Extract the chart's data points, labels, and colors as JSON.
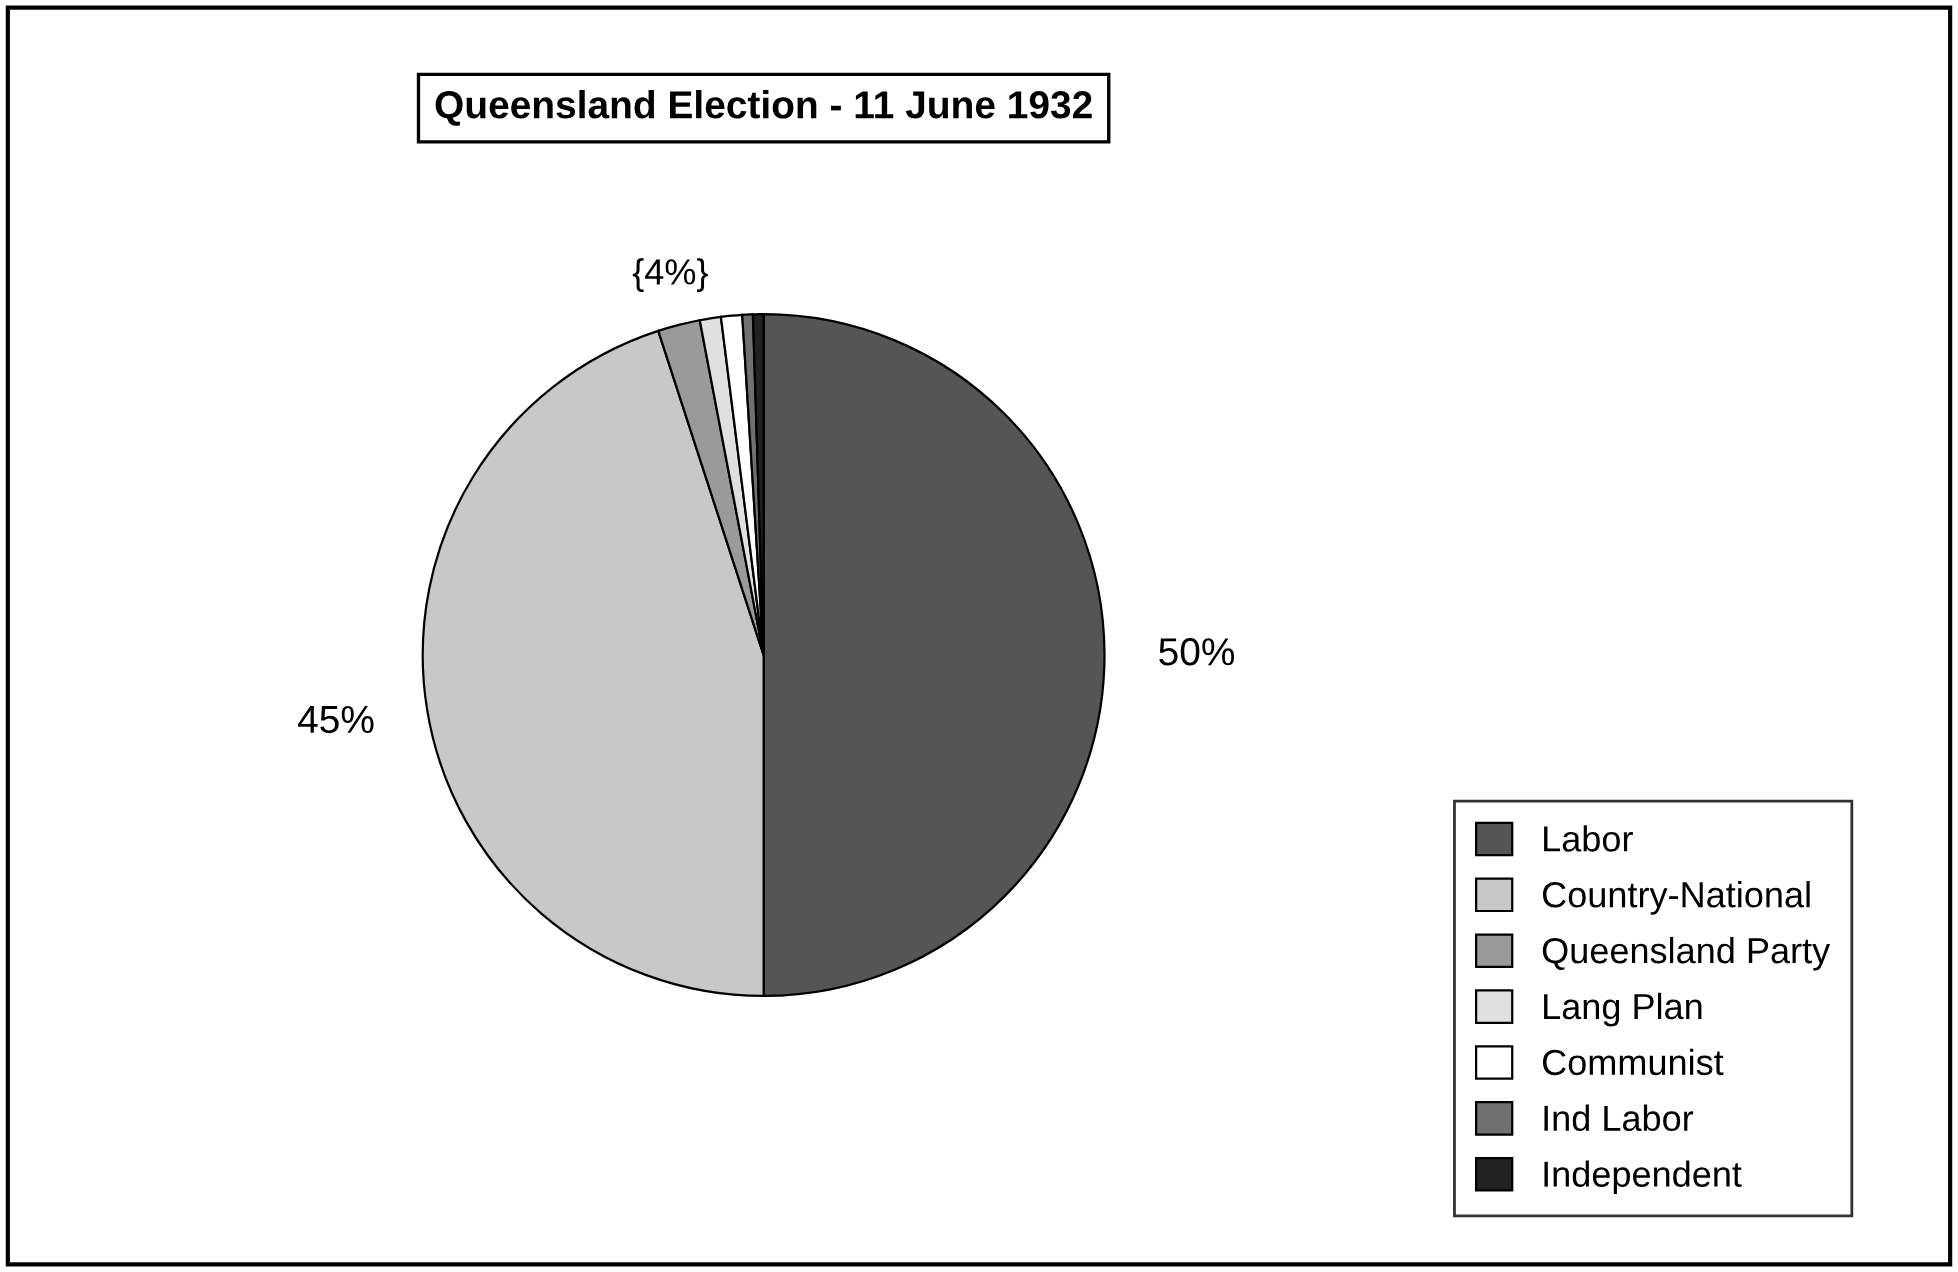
{
  "chart_data": {
    "type": "pie",
    "title": "Queensland Election - 11 June 1932",
    "categories": [
      "Labor",
      "Country-National",
      "Queensland Party",
      "Lang Plan",
      "Communist",
      "Ind Labor",
      "Independent"
    ],
    "values": [
      50,
      45,
      2,
      1,
      1,
      0.5,
      0.5
    ],
    "colors": [
      "#555555",
      "#c8c8c8",
      "#9a9a9a",
      "#e0e0e0",
      "#ffffff",
      "#707070",
      "#222222"
    ],
    "value_labels": [
      "50%",
      "45%",
      null,
      null,
      null,
      null,
      null
    ],
    "annotations": [
      {
        "text": "{4%}",
        "x": "Queensland Party",
        "y": null
      }
    ],
    "legend": "bottom right"
  }
}
